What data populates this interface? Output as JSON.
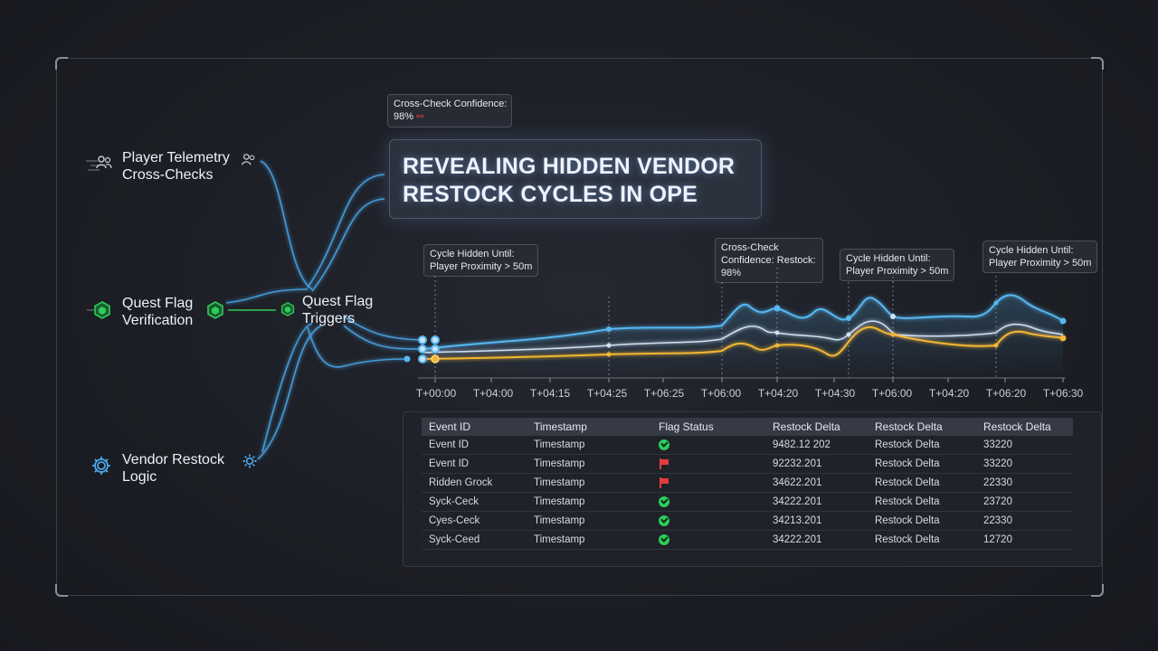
{
  "title": {
    "line1": "REVEALING HIDDEN VENDOR",
    "line2": "RESTOCK CYCLES IN OPE"
  },
  "nodes": {
    "telemetry": {
      "line1": "Player Telemetry",
      "line2": "Cross-Checks",
      "icon": "users-icon"
    },
    "quest_verification": {
      "line1": "Quest Flag",
      "line2": "Verification",
      "icon": "hexagon-icon"
    },
    "quest_triggers": {
      "line1": "Quest Flag",
      "line2": "Triggers",
      "icon": "hexagon-icon"
    },
    "vendor_logic": {
      "line1": "Vendor Restock",
      "line2": "Logic",
      "icon": "gear-icon"
    }
  },
  "tooltips": {
    "top_confidence": {
      "line1": "Cross-Check Confidence:",
      "line2": "98%"
    },
    "cycle_1": {
      "line1": "Cycle Hidden Until:",
      "line2": "Player Proximity > 50m"
    },
    "confidence_restock": {
      "line1": "Cross-Check",
      "line2": "Confidence: Restock:",
      "line3": "98%"
    },
    "cycle_2": {
      "line1": "Cycle Hidden Until:",
      "line2": "Player Proximity > 50m"
    },
    "cycle_3": {
      "line1": "Cycle Hidden Until:",
      "line2": "Player Proximity > 50m"
    }
  },
  "timeline": {
    "ticks": [
      "T+00:00",
      "T+04:00",
      "T+04:15",
      "T+04:25",
      "T+06:25",
      "T+06:00",
      "T+04:20",
      "T+04:30",
      "T+06:00",
      "T+04:20",
      "T+06:20",
      "T+06:30"
    ]
  },
  "colors": {
    "blue": "#56b8f2",
    "light": "#cfe2f4",
    "gold": "#f2b632",
    "green": "#2ecc5a",
    "red": "#e33c3c",
    "link": "#4aa8ea"
  },
  "table": {
    "headers": [
      "Event ID",
      "Timestamp",
      "Flag Status",
      "Restock Delta",
      "Restock Delta",
      "Restock Delta"
    ],
    "rows": [
      {
        "id": "Event ID",
        "ts": "Timestamp",
        "status": "ok",
        "d1": "9482.12 202",
        "d2": "Restock Delta",
        "d3": "33220"
      },
      {
        "id": "Event ID",
        "ts": "Timestamp",
        "status": "flag",
        "d1": "92232.201",
        "d2": "Restock Delta",
        "d3": "33220"
      },
      {
        "id": "Ridden Grock",
        "ts": "Timestamp",
        "status": "flag",
        "d1": "34622.201",
        "d2": "Restock Delta",
        "d3": "22330"
      },
      {
        "id": "Syck-Ceck",
        "ts": "Timestamp",
        "status": "ok",
        "d1": "34222.201",
        "d2": "Restock Delta",
        "d3": "23720"
      },
      {
        "id": "Cyes-Ceck",
        "ts": "Timestamp",
        "status": "ok",
        "d1": "34213.201",
        "d2": "Restock Delta",
        "d3": "22330"
      },
      {
        "id": "Syck-Ceed",
        "ts": "Timestamp",
        "status": "ok",
        "d1": "34222.201",
        "d2": "Restock Delta",
        "d3": "12720"
      }
    ]
  }
}
